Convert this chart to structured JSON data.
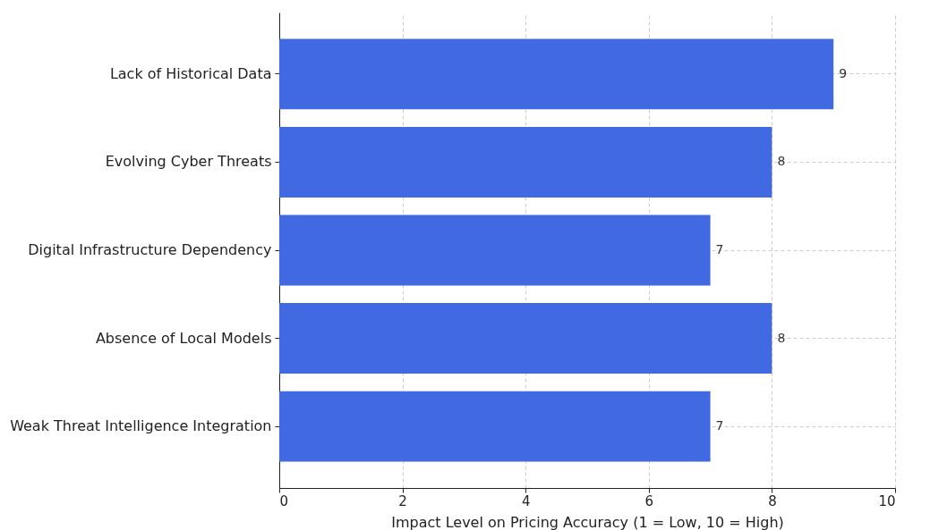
{
  "chart_data": {
    "type": "bar",
    "orientation": "horizontal",
    "xlabel": "Impact Level on Pricing Accuracy (1 = Low, 10 = High)",
    "categories": [
      "Lack of Historical Data",
      "Evolving Cyber Threats",
      "Digital Infrastructure Dependency",
      "Absence of Local Models",
      "Weak Threat Intelligence Integration"
    ],
    "values": [
      9,
      8,
      7,
      8,
      7
    ],
    "color": "#4169e1",
    "xlim": [
      0,
      10
    ],
    "xticks": [
      0,
      2,
      4,
      6,
      8,
      10
    ],
    "grid": true,
    "data_labels": true
  }
}
